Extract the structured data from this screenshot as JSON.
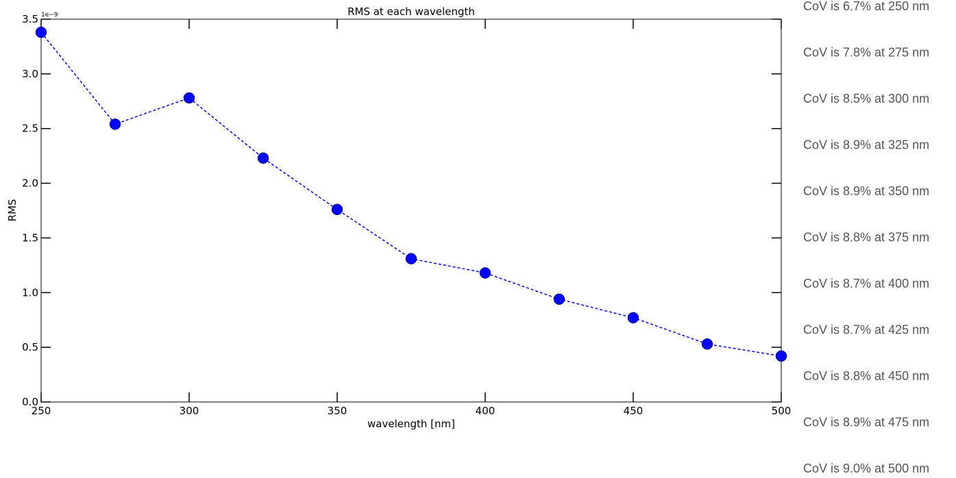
{
  "chart_data": {
    "type": "line",
    "title": "RMS at each wavelength",
    "xlabel": "wavelength [nm]",
    "ylabel": "RMS",
    "y_offset_label": "1e−9",
    "xlim": [
      250,
      500
    ],
    "ylim": [
      0.0,
      3.5
    ],
    "x_ticks": [
      250,
      300,
      350,
      400,
      450,
      500
    ],
    "x_tick_labels": [
      "250",
      "300",
      "350",
      "400",
      "450",
      "500"
    ],
    "y_ticks": [
      0.0,
      0.5,
      1.0,
      1.5,
      2.0,
      2.5,
      3.0,
      3.5
    ],
    "y_tick_labels": [
      "0.0",
      "0.5",
      "1.0",
      "1.5",
      "2.0",
      "2.5",
      "3.0",
      "3.5"
    ],
    "grid": false,
    "series": [
      {
        "x": [
          250,
          275,
          300,
          325,
          350,
          375,
          400,
          425,
          450,
          475,
          500
        ],
        "values": [
          3.38,
          2.54,
          2.78,
          2.23,
          1.76,
          1.31,
          1.18,
          0.94,
          0.77,
          0.53,
          0.42
        ],
        "color": "#0000ff",
        "line_style": "dashed",
        "marker": "circle"
      }
    ],
    "annotations": [
      "CoV is 6.7% at 250 nm",
      "CoV is 7.8% at 275 nm",
      "CoV is 8.5% at 300 nm",
      "CoV is 8.9% at 325 nm",
      "CoV is 8.9% at 350 nm",
      "CoV is 8.8% at 375 nm",
      "CoV is 8.7% at 400 nm",
      "CoV is 8.7% at 425 nm",
      "CoV is 8.8% at 450 nm",
      "CoV is 8.9% at 475 nm",
      "CoV is 9.0% at 500 nm"
    ],
    "annotation_color": "#555555"
  }
}
